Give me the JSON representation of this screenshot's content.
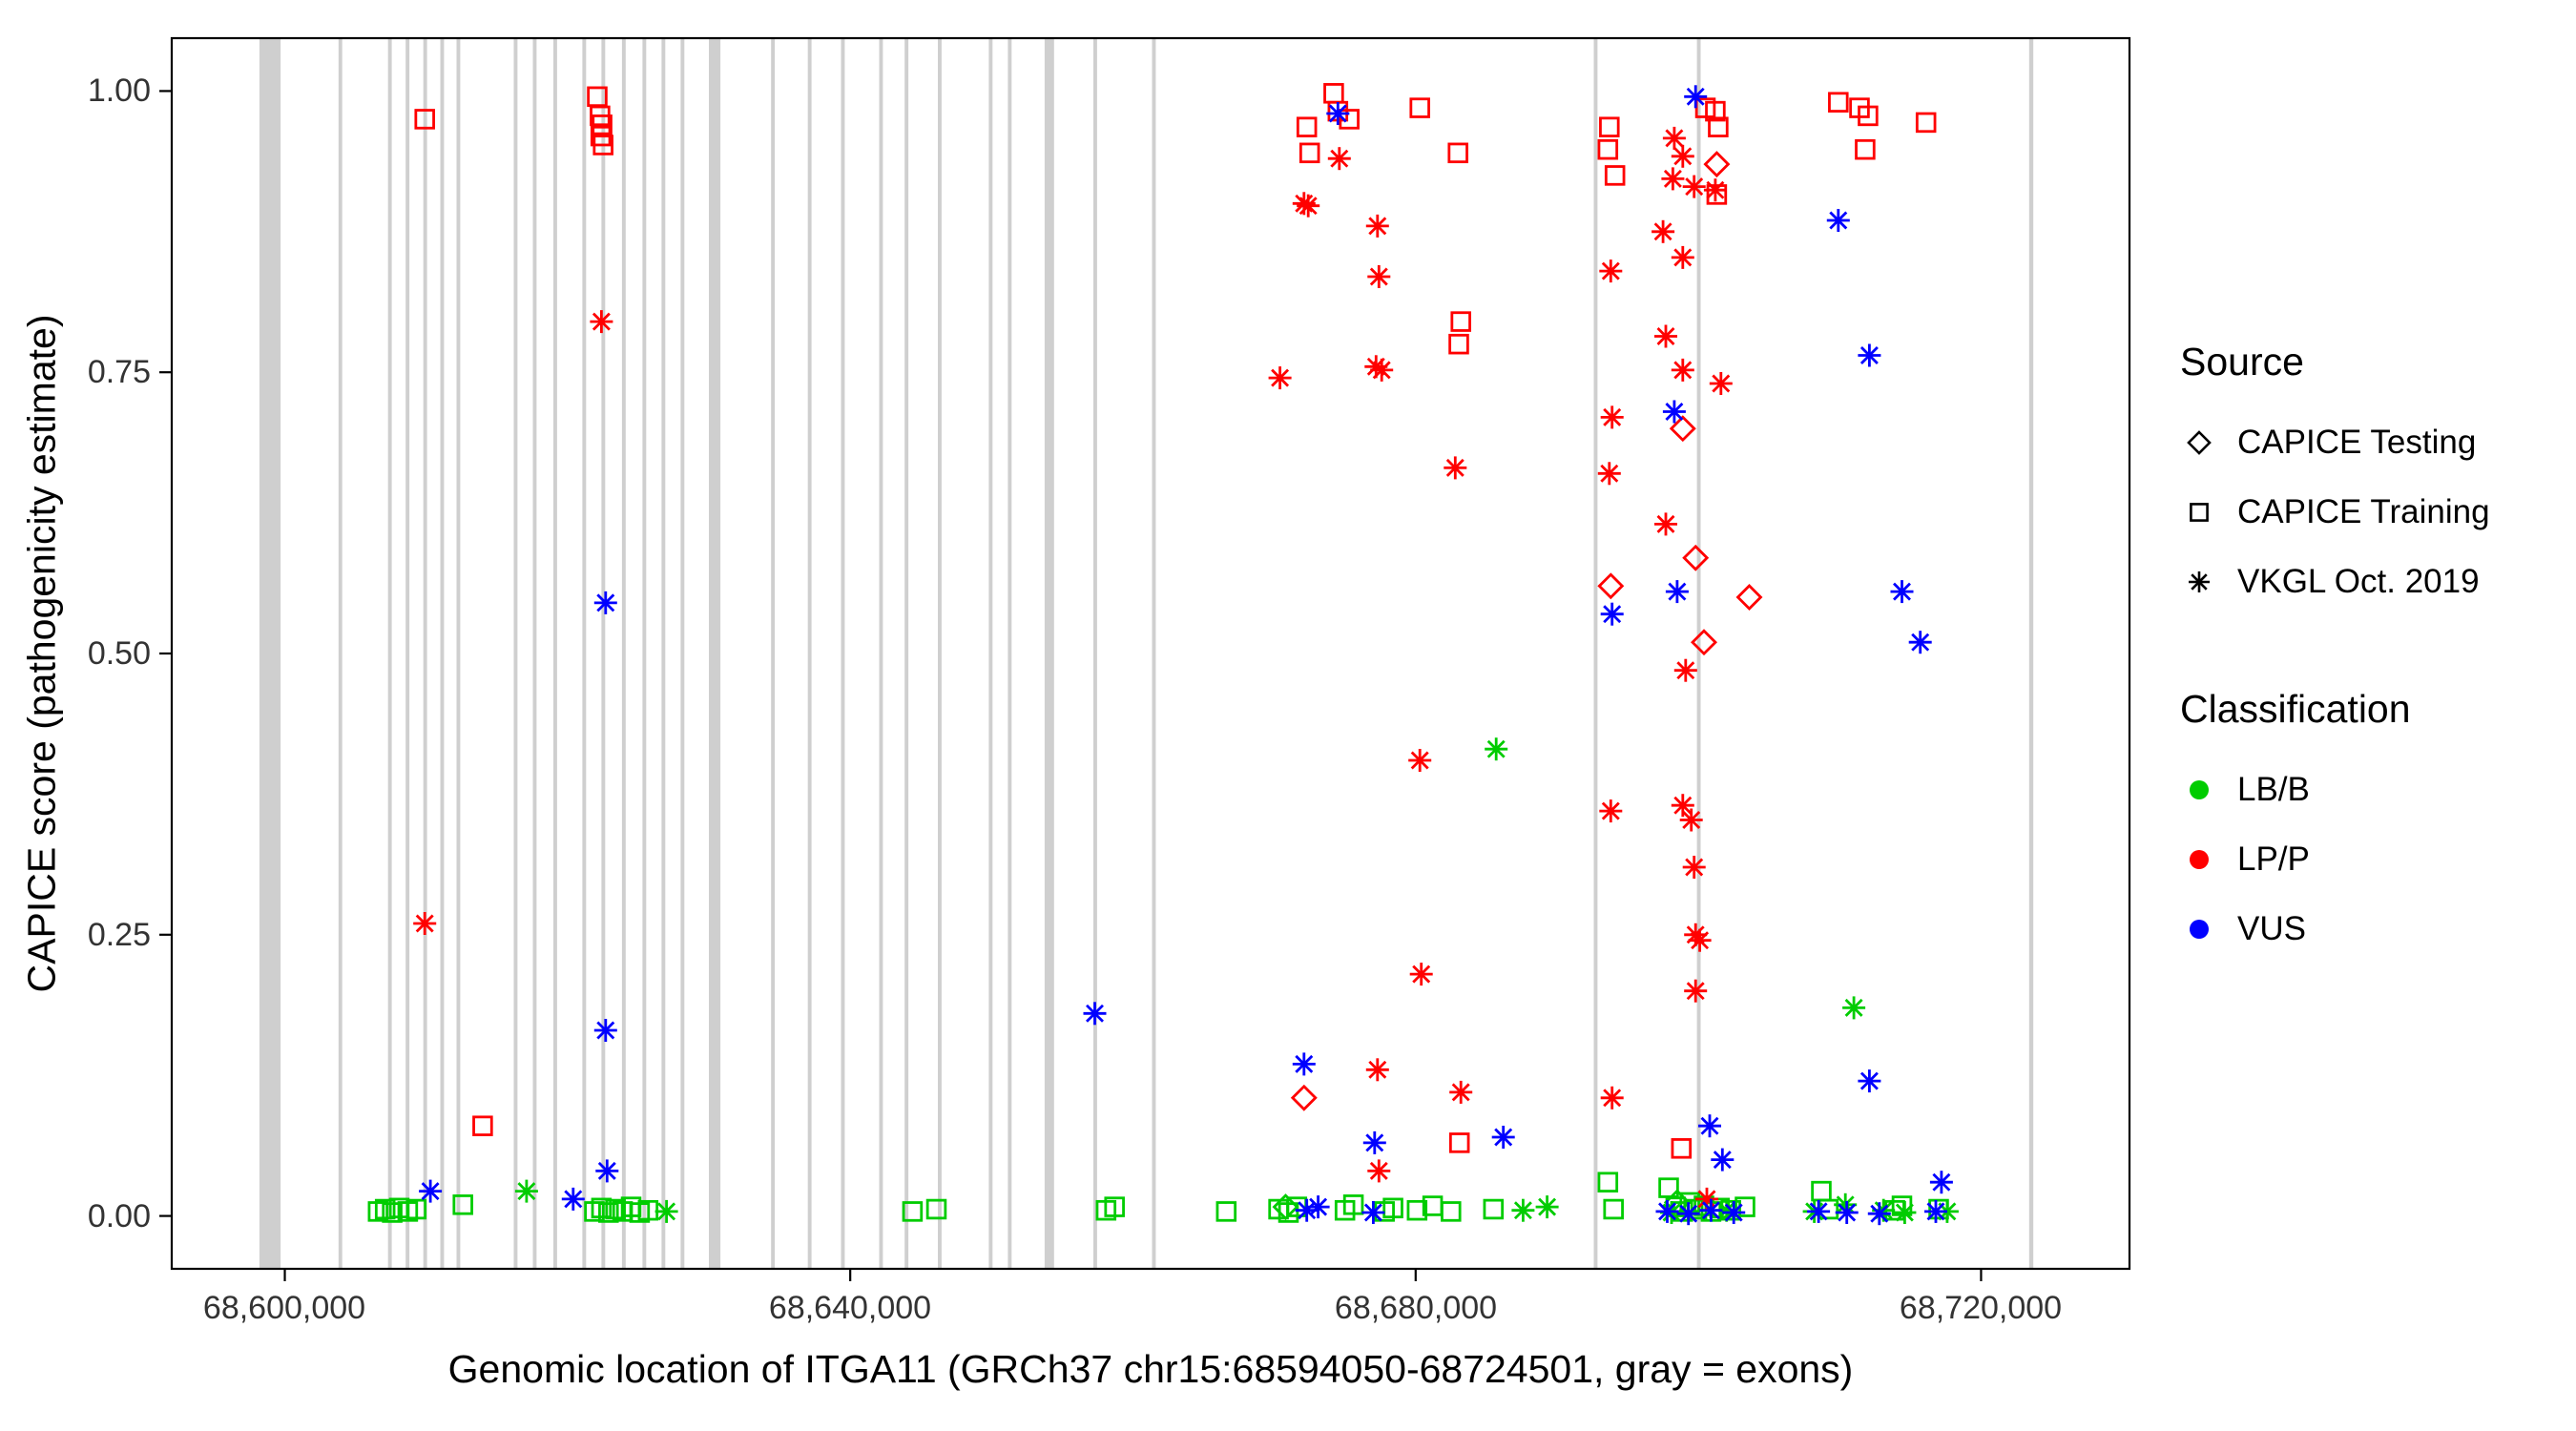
{
  "legend": {
    "source_title": "Source",
    "source_items": [
      {
        "label": "CAPICE Testing",
        "shape": "diamond"
      },
      {
        "label": "CAPICE Training",
        "shape": "square"
      },
      {
        "label": "VKGL Oct. 2019",
        "shape": "asterisk"
      }
    ],
    "classification_title": "Classification",
    "classification_items": [
      {
        "label": "LB/B",
        "color": "#00CC00"
      },
      {
        "label": "LP/P",
        "color": "#FF0000"
      },
      {
        "label": "VUS",
        "color": "#0000FF"
      }
    ]
  },
  "chart_data": {
    "type": "scatter",
    "title": "",
    "xlabel": "Genomic location of ITGA11 (GRCh37 chr15:68594050-68724501, gray = exons)",
    "ylabel": "CAPICE score (pathogenicity estimate)",
    "xlim": [
      68592000,
      68730500
    ],
    "ylim": [
      -0.047,
      1.047
    ],
    "x_ticks": [
      68600000,
      68640000,
      68680000,
      68720000
    ],
    "x_tick_labels": [
      "68,600,000",
      "68,640,000",
      "68,680,000",
      "68,720,000"
    ],
    "y_ticks": [
      0,
      0.25,
      0.5,
      0.75,
      1.0
    ],
    "y_tick_labels": [
      "0.00",
      "0.25",
      "0.50",
      "0.75",
      "1.00"
    ],
    "grid": false,
    "legend_position": "right",
    "exon_color": "#CFCFCF",
    "colors": {
      "LB/B": "#00CC00",
      "LP/P": "#FF0000",
      "VUS": "#0000FF"
    },
    "exons": [
      [
        68598200,
        68599700
      ],
      [
        68603800,
        68604060
      ],
      [
        68607300,
        68607560
      ],
      [
        68608550,
        68608810
      ],
      [
        68609800,
        68610060
      ],
      [
        68611000,
        68611260
      ],
      [
        68612150,
        68612410
      ],
      [
        68616200,
        68616460
      ],
      [
        68617550,
        68617810
      ],
      [
        68619000,
        68619260
      ],
      [
        68621050,
        68621310
      ],
      [
        68622400,
        68622660
      ],
      [
        68623850,
        68624110
      ],
      [
        68625300,
        68625560
      ],
      [
        68626650,
        68626910
      ],
      [
        68628000,
        68628260
      ],
      [
        68630000,
        68630820
      ],
      [
        68634400,
        68634660
      ],
      [
        68637000,
        68637260
      ],
      [
        68639350,
        68639610
      ],
      [
        68642050,
        68642310
      ],
      [
        68643850,
        68644110
      ],
      [
        68646200,
        68646460
      ],
      [
        68649800,
        68650060
      ],
      [
        68651150,
        68651410
      ],
      [
        68653750,
        68654420
      ],
      [
        68657200,
        68657460
      ],
      [
        68661350,
        68661610
      ],
      [
        68692600,
        68692860
      ],
      [
        68699900,
        68700160
      ],
      [
        68723400,
        68723700
      ]
    ],
    "series": [
      {
        "name": "CAPICE Testing",
        "classification": "LP/P",
        "shape": "diamond",
        "points": [
          [
            68672100,
            0.105
          ],
          [
            68693800,
            0.56
          ],
          [
            68698900,
            0.7
          ],
          [
            68699800,
            0.585
          ],
          [
            68700400,
            0.51
          ],
          [
            68701300,
            0.935
          ],
          [
            68703600,
            0.55
          ]
        ]
      },
      {
        "name": "CAPICE Testing",
        "classification": "LB/B",
        "shape": "diamond",
        "points": [
          [
            68670800,
            0.008
          ],
          [
            68698500,
            0.012
          ]
        ]
      },
      {
        "name": "CAPICE Training",
        "classification": "LP/P",
        "shape": "square",
        "points": [
          [
            68609900,
            0.975
          ],
          [
            68614000,
            0.08
          ],
          [
            68622100,
            0.995
          ],
          [
            68622300,
            0.978
          ],
          [
            68622450,
            0.97
          ],
          [
            68622350,
            0.96
          ],
          [
            68622520,
            0.952
          ],
          [
            68672300,
            0.968
          ],
          [
            68672500,
            0.945
          ],
          [
            68674200,
            0.998
          ],
          [
            68674500,
            0.982
          ],
          [
            68675300,
            0.975
          ],
          [
            68680300,
            0.985
          ],
          [
            68683000,
            0.945
          ],
          [
            68683200,
            0.795
          ],
          [
            68683050,
            0.775
          ],
          [
            68683100,
            0.065
          ],
          [
            68693700,
            0.968
          ],
          [
            68693600,
            0.948
          ],
          [
            68694100,
            0.925
          ],
          [
            68698800,
            0.06
          ],
          [
            68700500,
            0.985
          ],
          [
            68701200,
            0.982
          ],
          [
            68701400,
            0.968
          ],
          [
            68701300,
            0.908
          ],
          [
            68709900,
            0.99
          ],
          [
            68711400,
            0.985
          ],
          [
            68712000,
            0.978
          ],
          [
            68711800,
            0.948
          ],
          [
            68716100,
            0.972
          ]
        ]
      },
      {
        "name": "CAPICE Training",
        "classification": "LB/B",
        "shape": "square",
        "points": [
          [
            68606600,
            0.004
          ],
          [
            68607100,
            0.006
          ],
          [
            68607600,
            0.003
          ],
          [
            68608100,
            0.007
          ],
          [
            68608700,
            0.004
          ],
          [
            68609300,
            0.006
          ],
          [
            68612600,
            0.01
          ],
          [
            68621900,
            0.004
          ],
          [
            68622400,
            0.007
          ],
          [
            68622900,
            0.003
          ],
          [
            68623400,
            0.006
          ],
          [
            68623900,
            0.004
          ],
          [
            68624500,
            0.008
          ],
          [
            68625100,
            0.003
          ],
          [
            68625700,
            0.005
          ],
          [
            68644400,
            0.004
          ],
          [
            68646100,
            0.006
          ],
          [
            68658100,
            0.005
          ],
          [
            68658700,
            0.008
          ],
          [
            68666600,
            0.004
          ],
          [
            68670300,
            0.006
          ],
          [
            68671000,
            0.003
          ],
          [
            68671600,
            0.008
          ],
          [
            68675000,
            0.005
          ],
          [
            68675600,
            0.01
          ],
          [
            68677800,
            0.004
          ],
          [
            68678400,
            0.007
          ],
          [
            68680100,
            0.005
          ],
          [
            68681200,
            0.009
          ],
          [
            68682500,
            0.004
          ],
          [
            68685500,
            0.006
          ],
          [
            68693600,
            0.03
          ],
          [
            68694000,
            0.006
          ],
          [
            68697900,
            0.025
          ],
          [
            68698400,
            0.008
          ],
          [
            68698900,
            0.004
          ],
          [
            68699400,
            0.012
          ],
          [
            68699900,
            0.006
          ],
          [
            68700400,
            0.009
          ],
          [
            68700900,
            0.004
          ],
          [
            68701500,
            0.007
          ],
          [
            68702300,
            0.005
          ],
          [
            68703300,
            0.008
          ],
          [
            68708700,
            0.022
          ],
          [
            68709200,
            0.006
          ],
          [
            68713900,
            0.005
          ],
          [
            68714400,
            0.009
          ],
          [
            68717000,
            0.006
          ]
        ]
      },
      {
        "name": "VKGL Oct. 2019",
        "classification": "LP/P",
        "shape": "asterisk",
        "points": [
          [
            68609900,
            0.26
          ],
          [
            68622400,
            0.795
          ],
          [
            68670400,
            0.745
          ],
          [
            68672100,
            0.9
          ],
          [
            68672400,
            0.898
          ],
          [
            68674600,
            0.94
          ],
          [
            68677300,
            0.88
          ],
          [
            68677400,
            0.835
          ],
          [
            68677200,
            0.755
          ],
          [
            68677600,
            0.752
          ],
          [
            68677300,
            0.13
          ],
          [
            68677400,
            0.04
          ],
          [
            68680300,
            0.405
          ],
          [
            68680400,
            0.215
          ],
          [
            68682800,
            0.665
          ],
          [
            68683200,
            0.11
          ],
          [
            68693800,
            0.84
          ],
          [
            68693900,
            0.71
          ],
          [
            68693700,
            0.66
          ],
          [
            68693800,
            0.36
          ],
          [
            68693900,
            0.105
          ],
          [
            68697500,
            0.875
          ],
          [
            68698300,
            0.958
          ],
          [
            68698900,
            0.942
          ],
          [
            68698200,
            0.922
          ],
          [
            68699700,
            0.915
          ],
          [
            68701200,
            0.912
          ],
          [
            68698900,
            0.852
          ],
          [
            68697700,
            0.782
          ],
          [
            68698900,
            0.752
          ],
          [
            68701600,
            0.74
          ],
          [
            68697700,
            0.615
          ],
          [
            68699100,
            0.485
          ],
          [
            68698900,
            0.365
          ],
          [
            68699500,
            0.352
          ],
          [
            68699700,
            0.31
          ],
          [
            68699800,
            0.25
          ],
          [
            68700100,
            0.245
          ],
          [
            68699800,
            0.2
          ],
          [
            68700600,
            0.015
          ]
        ]
      },
      {
        "name": "VKGL Oct. 2019",
        "classification": "LB/B",
        "shape": "asterisk",
        "points": [
          [
            68617100,
            0.022
          ],
          [
            68627000,
            0.004
          ],
          [
            68685700,
            0.415
          ],
          [
            68687600,
            0.005
          ],
          [
            68689300,
            0.008
          ],
          [
            68698100,
            0.003
          ],
          [
            68702000,
            0.005
          ],
          [
            68708200,
            0.004
          ],
          [
            68711000,
            0.185
          ],
          [
            68710400,
            0.01
          ],
          [
            68713100,
            0.005
          ],
          [
            68714600,
            0.003
          ],
          [
            68717600,
            0.004
          ]
        ]
      },
      {
        "name": "VKGL Oct. 2019",
        "classification": "VUS",
        "shape": "asterisk",
        "points": [
          [
            68610300,
            0.022
          ],
          [
            68620400,
            0.015
          ],
          [
            68622700,
            0.545
          ],
          [
            68622700,
            0.165
          ],
          [
            68622800,
            0.04
          ],
          [
            68657300,
            0.18
          ],
          [
            68672100,
            0.135
          ],
          [
            68672300,
            0.005
          ],
          [
            68673100,
            0.008
          ],
          [
            68674500,
            0.98
          ],
          [
            68677100,
            0.065
          ],
          [
            68677000,
            0.003
          ],
          [
            68686200,
            0.07
          ],
          [
            68693900,
            0.535
          ],
          [
            68697800,
            0.004
          ],
          [
            68698300,
            0.715
          ],
          [
            68698500,
            0.555
          ],
          [
            68699300,
            0.002
          ],
          [
            68699800,
            0.995
          ],
          [
            68700800,
            0.08
          ],
          [
            68700900,
            0.005
          ],
          [
            68701700,
            0.05
          ],
          [
            68702500,
            0.003
          ],
          [
            68708500,
            0.004
          ],
          [
            68709900,
            0.885
          ],
          [
            68710500,
            0.003
          ],
          [
            68712100,
            0.765
          ],
          [
            68712100,
            0.12
          ],
          [
            68712800,
            0.002
          ],
          [
            68714400,
            0.555
          ],
          [
            68715700,
            0.51
          ],
          [
            68716800,
            0.004
          ],
          [
            68717200,
            0.03
          ]
        ]
      }
    ]
  }
}
